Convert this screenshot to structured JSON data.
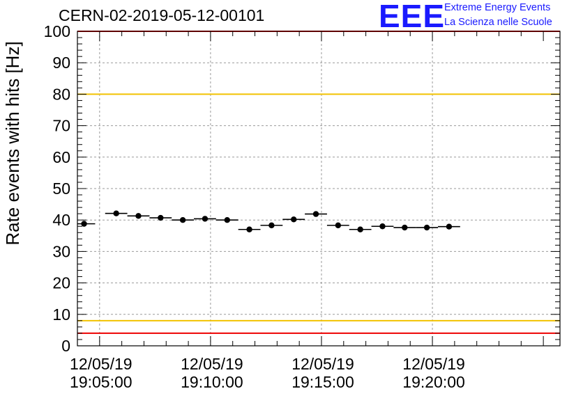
{
  "header": {
    "title": "CERN-02-2019-05-12-00101",
    "logo_text": "EEE",
    "logo_line1": "Extreme Energy Events",
    "logo_line2": "La Scienza nelle Scuole",
    "logo_color": "#1a1aff"
  },
  "chart_data": {
    "type": "scatter",
    "title": "CERN-02-2019-05-12-00101",
    "ylabel": "Rate events with hits [Hz]",
    "xlabel": "",
    "x_unit": "minutes from 12/05/19 19:05:00",
    "xlim": [
      -1.0,
      20.75
    ],
    "ylim": [
      0,
      100
    ],
    "y_ticks": [
      0,
      10,
      20,
      30,
      40,
      50,
      60,
      70,
      80,
      90,
      100
    ],
    "x_ticks": [
      {
        "x": 0,
        "date": "12/05/19",
        "time": "19:05:00"
      },
      {
        "x": 5,
        "date": "12/05/19",
        "time": "19:10:00"
      },
      {
        "x": 10,
        "date": "12/05/19",
        "time": "19:15:00"
      },
      {
        "x": 15,
        "date": "12/05/19",
        "time": "19:20:00"
      }
    ],
    "bin_width_minutes": 1,
    "grid": true,
    "reference_lines": [
      {
        "y": 100,
        "color": "#ee0000"
      },
      {
        "y": 80,
        "color": "#f2c200"
      },
      {
        "y": 8,
        "color": "#f2c200"
      },
      {
        "y": 4,
        "color": "#ee0000"
      }
    ],
    "series": [
      {
        "marker_color": "#000000",
        "points": [
          {
            "x": -0.7,
            "y": 38.8
          },
          {
            "x": 0.75,
            "y": 42.1
          },
          {
            "x": 1.75,
            "y": 41.3
          },
          {
            "x": 2.75,
            "y": 40.7
          },
          {
            "x": 3.75,
            "y": 40.0
          },
          {
            "x": 4.75,
            "y": 40.4
          },
          {
            "x": 5.75,
            "y": 40.0
          },
          {
            "x": 6.75,
            "y": 37.0
          },
          {
            "x": 7.75,
            "y": 38.3
          },
          {
            "x": 8.75,
            "y": 40.2
          },
          {
            "x": 9.75,
            "y": 41.9
          },
          {
            "x": 10.75,
            "y": 38.3
          },
          {
            "x": 11.75,
            "y": 37.0
          },
          {
            "x": 12.75,
            "y": 38.0
          },
          {
            "x": 13.75,
            "y": 37.6
          },
          {
            "x": 14.75,
            "y": 37.6
          },
          {
            "x": 15.75,
            "y": 37.9
          }
        ]
      }
    ]
  }
}
